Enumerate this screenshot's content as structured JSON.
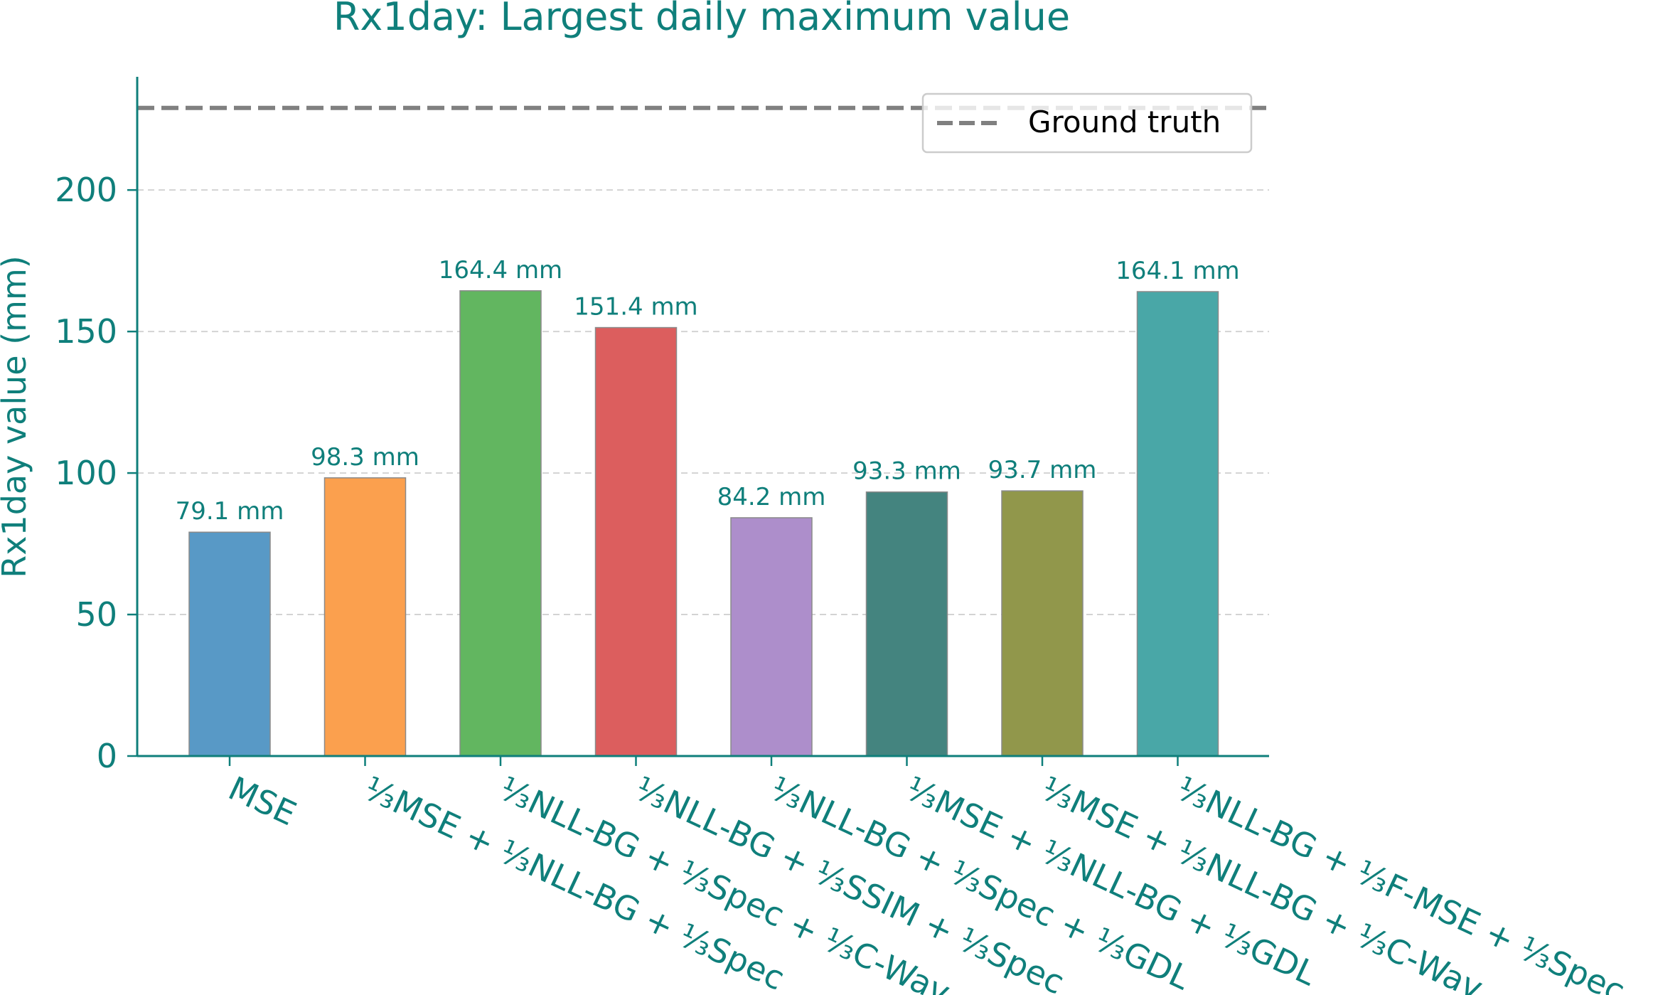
{
  "chart_data": {
    "type": "bar",
    "title": "Rx1day: Largest daily maximum value",
    "ylabel": "Rx1day value (mm)",
    "xlabel": "",
    "ylim": [
      0,
      240
    ],
    "yticks": [
      "0",
      "50",
      "100",
      "150",
      "200"
    ],
    "grid": "y, dashed",
    "legend_position": "top-right",
    "categories": [
      "MSE",
      "⅓MSE + ⅓NLL-BG + ⅓Spec",
      "⅓NLL-BG + ⅓Spec + ⅓C-Wav",
      "⅓NLL-BG + ⅓SSIM + ⅓Spec",
      "⅓NLL-BG + ⅓Spec + ⅓GDL",
      "⅓MSE + ⅓NLL-BG + ⅓GDL",
      "⅓MSE + ⅓NLL-BG + ⅓C-Wav",
      "⅓NLL-BG + ⅓F-MSE + ⅓Spec"
    ],
    "values": [
      79.1,
      98.3,
      164.4,
      151.4,
      84.2,
      93.3,
      93.7,
      164.1
    ],
    "value_labels": [
      "79.1 mm",
      "98.3 mm",
      "164.4 mm",
      "151.4 mm",
      "84.2 mm",
      "93.3 mm",
      "93.7 mm",
      "164.1 mm"
    ],
    "bar_colors": [
      "#5899c6",
      "#fba04e",
      "#62b660",
      "#dc5e5e",
      "#ad8ecb",
      "#44847f",
      "#91974b",
      "#49a7a7"
    ],
    "reference_line": {
      "name": "Ground truth",
      "value": 229,
      "color": "#808080",
      "style": "dashed"
    },
    "accent_color": "#0f7f7b"
  }
}
